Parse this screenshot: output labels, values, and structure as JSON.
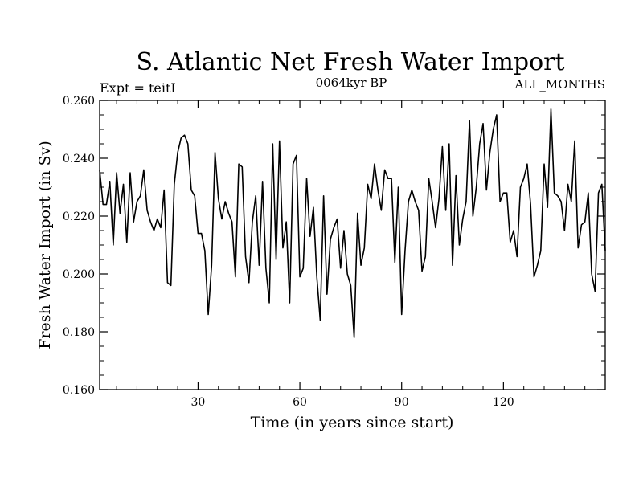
{
  "chart_data": {
    "type": "line",
    "title": "S. Atlantic Net Fresh Water Import",
    "subtitle_center": "0064kyr BP",
    "subtitle_left": "Expt = teitI",
    "subtitle_right": "ALL_MONTHS",
    "xlabel": "Time (in years since start)",
    "ylabel": "Fresh Water Import (in Sv)",
    "xlim": [
      1,
      150
    ],
    "ylim": [
      0.16,
      0.26
    ],
    "x_ticks": [
      30,
      60,
      90,
      120
    ],
    "x_tick_labels": [
      "30",
      "60",
      "90",
      "120"
    ],
    "y_ticks": [
      0.16,
      0.18,
      0.2,
      0.22,
      0.24,
      0.26
    ],
    "y_tick_labels": [
      "0.160",
      "0.180",
      "0.200",
      "0.220",
      "0.240",
      "0.260"
    ],
    "grid": false,
    "series": [
      {
        "name": "Net Fresh Water Import",
        "color": "#000000",
        "x": [
          1,
          2,
          3,
          4,
          5,
          6,
          7,
          8,
          9,
          10,
          11,
          12,
          13,
          14,
          15,
          16,
          17,
          18,
          19,
          20,
          21,
          22,
          23,
          24,
          25,
          26,
          27,
          28,
          29,
          30,
          31,
          32,
          33,
          34,
          35,
          36,
          37,
          38,
          39,
          40,
          41,
          42,
          43,
          44,
          45,
          46,
          47,
          48,
          49,
          50,
          51,
          52,
          53,
          54,
          55,
          56,
          57,
          58,
          59,
          60,
          61,
          62,
          63,
          64,
          65,
          66,
          67,
          68,
          69,
          70,
          71,
          72,
          73,
          74,
          75,
          76,
          77,
          78,
          79,
          80,
          81,
          82,
          83,
          84,
          85,
          86,
          87,
          88,
          89,
          90,
          91,
          92,
          93,
          94,
          95,
          96,
          97,
          98,
          99,
          100,
          101,
          102,
          103,
          104,
          105,
          106,
          107,
          108,
          109,
          110,
          111,
          112,
          113,
          114,
          115,
          116,
          117,
          118,
          119,
          120,
          121,
          122,
          123,
          124,
          125,
          126,
          127,
          128,
          129,
          130,
          131,
          132,
          133,
          134,
          135,
          136,
          137,
          138,
          139,
          140,
          141,
          142,
          143,
          144,
          145,
          146,
          147,
          148,
          149,
          150
        ],
        "values": [
          0.236,
          0.224,
          0.224,
          0.232,
          0.21,
          0.235,
          0.221,
          0.231,
          0.211,
          0.235,
          0.218,
          0.225,
          0.227,
          0.236,
          0.222,
          0.218,
          0.215,
          0.219,
          0.216,
          0.229,
          0.197,
          0.196,
          0.231,
          0.242,
          0.247,
          0.248,
          0.245,
          0.229,
          0.227,
          0.214,
          0.214,
          0.208,
          0.186,
          0.203,
          0.242,
          0.226,
          0.219,
          0.225,
          0.221,
          0.218,
          0.199,
          0.238,
          0.237,
          0.206,
          0.197,
          0.218,
          0.227,
          0.203,
          0.232,
          0.202,
          0.19,
          0.245,
          0.205,
          0.246,
          0.209,
          0.218,
          0.19,
          0.238,
          0.241,
          0.199,
          0.202,
          0.233,
          0.213,
          0.223,
          0.199,
          0.184,
          0.227,
          0.193,
          0.212,
          0.216,
          0.219,
          0.202,
          0.215,
          0.2,
          0.196,
          0.178,
          0.221,
          0.203,
          0.209,
          0.231,
          0.226,
          0.238,
          0.229,
          0.222,
          0.236,
          0.233,
          0.233,
          0.204,
          0.23,
          0.186,
          0.208,
          0.225,
          0.229,
          0.225,
          0.222,
          0.201,
          0.206,
          0.233,
          0.225,
          0.216,
          0.226,
          0.244,
          0.222,
          0.245,
          0.203,
          0.234,
          0.21,
          0.219,
          0.225,
          0.253,
          0.22,
          0.23,
          0.245,
          0.252,
          0.229,
          0.242,
          0.25,
          0.255,
          0.225,
          0.228,
          0.228,
          0.211,
          0.215,
          0.206,
          0.23,
          0.233,
          0.238,
          0.224,
          0.199,
          0.203,
          0.208,
          0.238,
          0.223,
          0.257,
          0.228,
          0.227,
          0.225,
          0.215,
          0.231,
          0.225,
          0.246,
          0.209,
          0.217,
          0.218,
          0.228,
          0.2,
          0.194,
          0.228,
          0.231,
          0.208
        ]
      }
    ]
  }
}
